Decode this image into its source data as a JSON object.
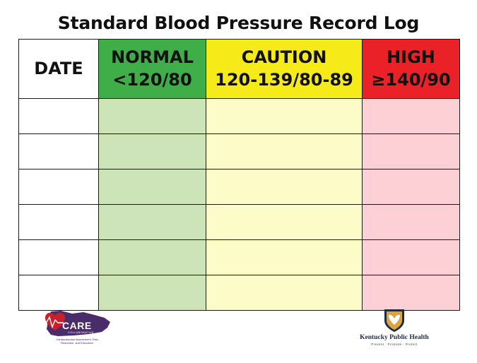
{
  "title": "Standard Blood Pressure Record Log",
  "columns": [
    {
      "name": "DATE",
      "range": ""
    },
    {
      "name": "NORMAL",
      "range": "<120/80"
    },
    {
      "name": "CAUTION",
      "range": "120-139/80-89"
    },
    {
      "name": "HIGH",
      "range": "≥140/90"
    }
  ],
  "colors": {
    "normal_header": "#3fae49",
    "normal_cell": "#cde4b8",
    "caution_header": "#f6ea18",
    "caution_cell": "#fdfcc9",
    "high_header": "#ea2127",
    "high_cell": "#fdd0d6"
  },
  "rows": [
    [
      "",
      "",
      "",
      ""
    ],
    [
      "",
      "",
      "",
      ""
    ],
    [
      "",
      "",
      "",
      ""
    ],
    [
      "",
      "",
      "",
      ""
    ],
    [
      "",
      "",
      "",
      ""
    ],
    [
      "",
      "",
      "",
      ""
    ]
  ],
  "logos": {
    "care": {
      "name": "CARE",
      "subtitle": "COLLABORATIVE",
      "tagline": "Cardiovascular Assessment, Risk Reduction, and Education",
      "icon": "heart-kentucky-icon"
    },
    "kph": {
      "name": "Kentucky Public Health",
      "tagline": "Prevent · Promote · Protect",
      "icon": "shield-hands-icon"
    }
  }
}
